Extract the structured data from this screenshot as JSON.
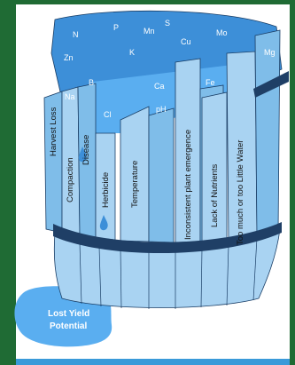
{
  "colors": {
    "background": "#1f6b34",
    "panel": "#ffffff",
    "stave_light": "#a9d3f2",
    "stave_mid": "#7fbde9",
    "stave_dark": "#3d8fd8",
    "hoop": "#1f3f66",
    "outline": "#1a3e66",
    "pool": "#5aaef0"
  },
  "barrel": {
    "top_nutrients": [
      "N",
      "P",
      "Mn",
      "S",
      "Cu",
      "Mo",
      "Zn",
      "K",
      "Mg"
    ],
    "mid_labels": [
      "Ca",
      "Fe",
      "B",
      "Na",
      "Cl",
      "pH"
    ],
    "stave_labels": [
      "Harvest Loss",
      "Compaction",
      "Disease",
      "Herbicide",
      "Temperature",
      "Inconsistent plant emergence",
      "Lack of Nutrients",
      "Too much or too Little Water"
    ]
  },
  "pool": {
    "line1": "Lost Yield",
    "line2": "Potential"
  },
  "icons": [
    "water-drop-icon"
  ]
}
